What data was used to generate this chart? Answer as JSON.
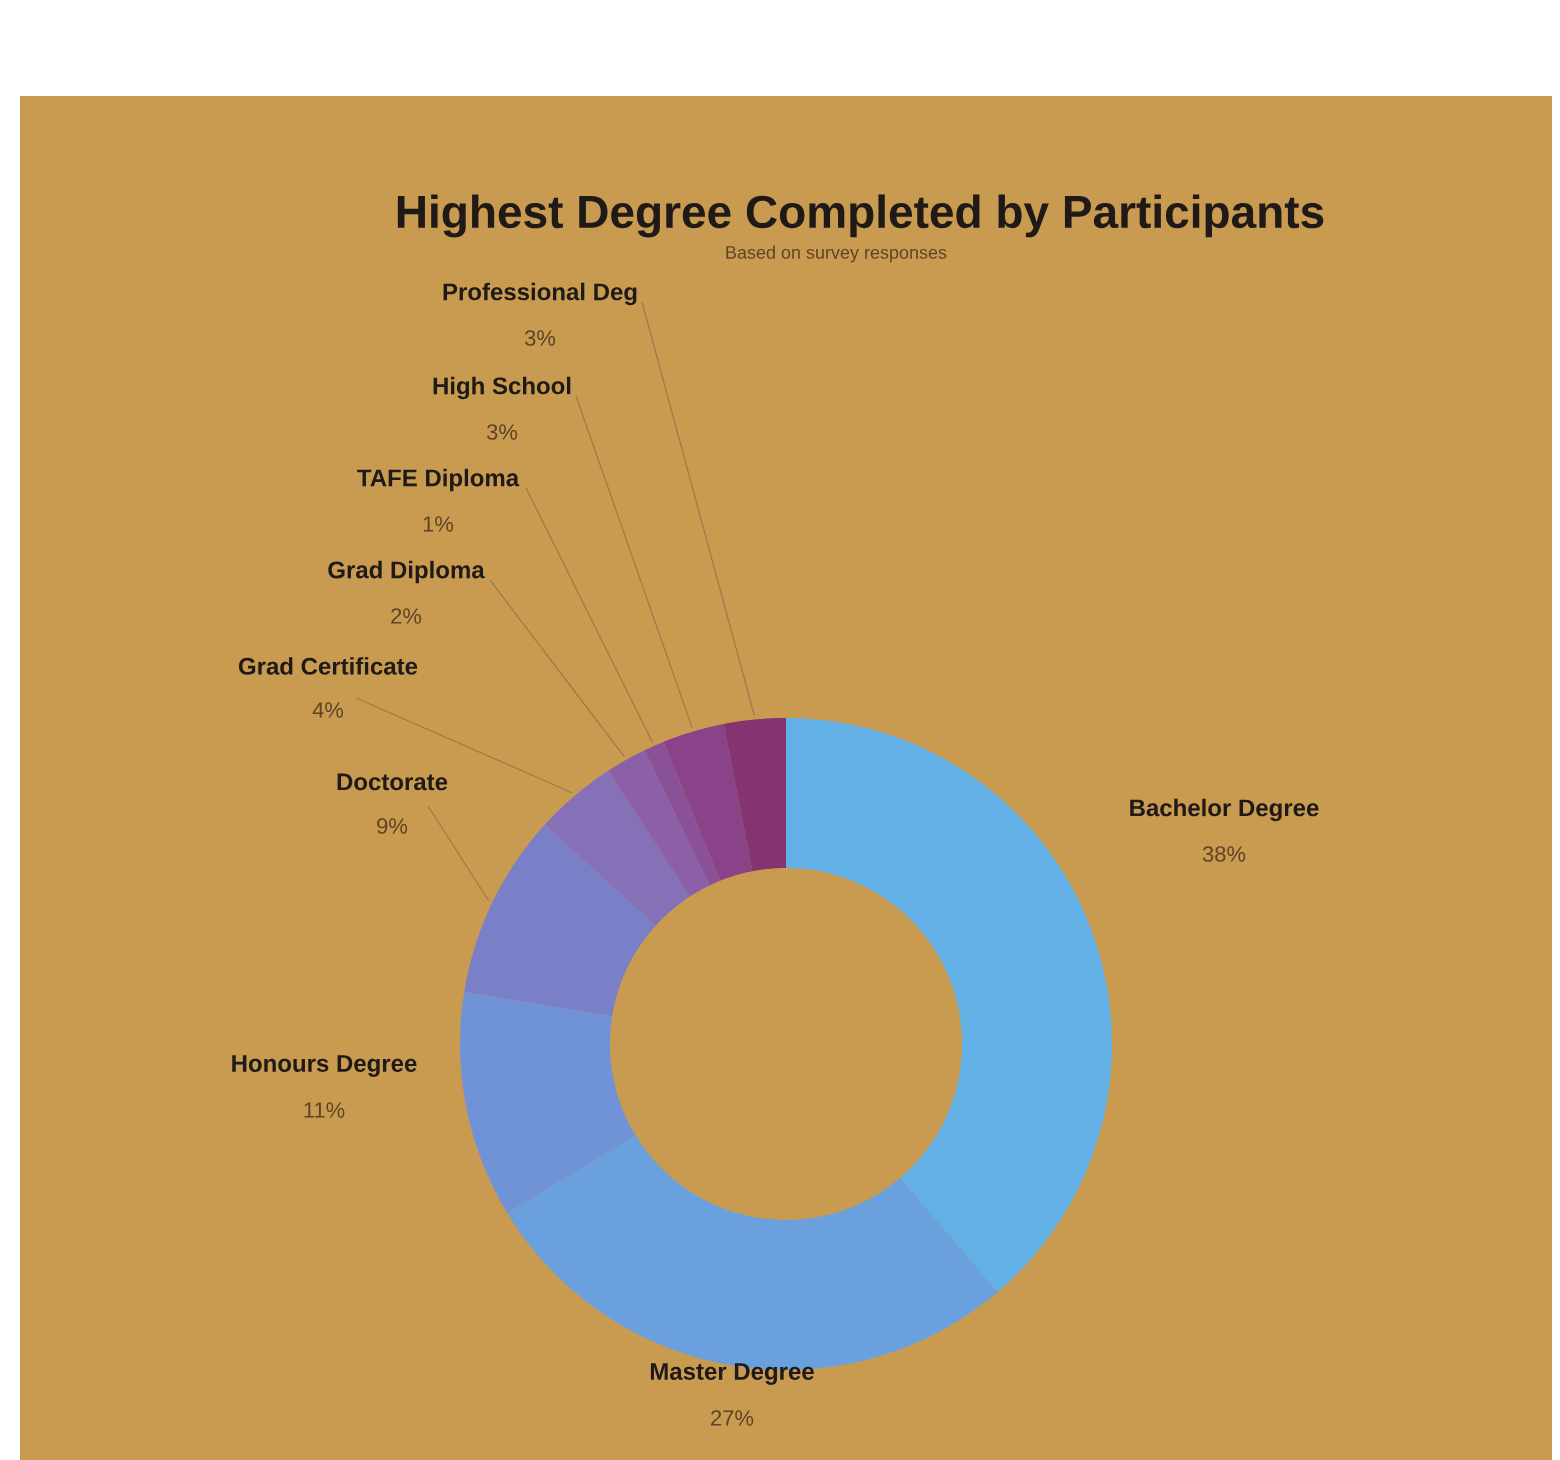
{
  "chart_data": {
    "type": "donut",
    "title": "Highest Degree Completed by Participants",
    "subtitle": "Based on survey responses",
    "categories": [
      "Bachelor Degree",
      "Master Degree",
      "Honours Degree",
      "Doctorate",
      "Grad Certificate",
      "Grad Diploma",
      "TAFE Diploma",
      "High School",
      "Professional Deg"
    ],
    "values": [
      38,
      27,
      11,
      9,
      4,
      2,
      1,
      3,
      3
    ],
    "value_labels": [
      "38%",
      "27%",
      "11%",
      "9%",
      "4%",
      "2%",
      "1%",
      "3%",
      "3%"
    ],
    "colors": [
      "#62b0e6",
      "#6aa0de",
      "#7092d6",
      "#7a80c8",
      "#8670b8",
      "#8c60a8",
      "#8a5098",
      "#8a4388",
      "#843470"
    ]
  }
}
